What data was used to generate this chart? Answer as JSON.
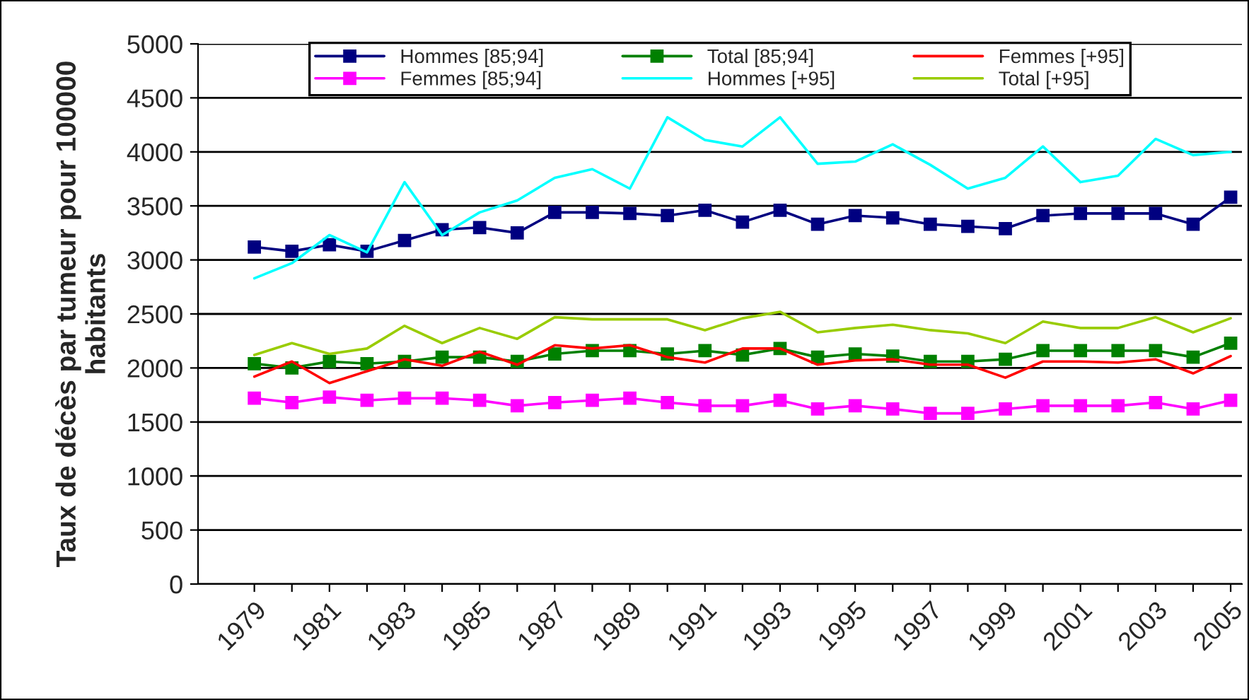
{
  "chart_data": {
    "type": "line",
    "ylabel": "Taux de décès par tumeur pour 100000\nhabitants",
    "categories": [
      "1979",
      null,
      "1981",
      null,
      "1983",
      null,
      "1985",
      null,
      "1987",
      null,
      "1989",
      null,
      "1991",
      null,
      "1993",
      null,
      "1995",
      null,
      "1997",
      null,
      "1999",
      null,
      "2001",
      null,
      "2003",
      null,
      "2005"
    ],
    "ylim": [
      0,
      5000
    ],
    "yticks": [
      0,
      500,
      1000,
      1500,
      2000,
      2500,
      3000,
      3500,
      4000,
      4500,
      5000
    ],
    "grid": "y",
    "legend": "top",
    "series": [
      {
        "name": "Hommes [85;94]",
        "color": "#000080",
        "marker": "square",
        "values": [
          3120,
          3080,
          3140,
          3080,
          3180,
          3280,
          3300,
          3250,
          3440,
          3440,
          3430,
          3410,
          3460,
          3350,
          3460,
          3330,
          3410,
          3390,
          3330,
          3310,
          3290,
          3410,
          3430,
          3430,
          3430,
          3330,
          3580
        ]
      },
      {
        "name": "Femmes [85;94]",
        "color": "#ff00ff",
        "marker": "square",
        "values": [
          1720,
          1680,
          1730,
          1700,
          1720,
          1720,
          1700,
          1650,
          1680,
          1700,
          1720,
          1680,
          1650,
          1650,
          1700,
          1620,
          1650,
          1620,
          1580,
          1580,
          1620,
          1650,
          1650,
          1650,
          1680,
          1620,
          1700
        ]
      },
      {
        "name": "Total [85;94]",
        "color": "#008000",
        "marker": "square",
        "values": [
          2040,
          2000,
          2060,
          2040,
          2060,
          2100,
          2100,
          2060,
          2130,
          2160,
          2160,
          2130,
          2160,
          2120,
          2180,
          2100,
          2130,
          2110,
          2060,
          2060,
          2080,
          2160,
          2160,
          2160,
          2160,
          2100,
          2230
        ]
      },
      {
        "name": "Hommes [+95]",
        "color": "#00ffff",
        "marker": "none",
        "values": [
          2830,
          2970,
          3230,
          3070,
          3720,
          3230,
          3440,
          3550,
          3760,
          3840,
          3660,
          4320,
          4110,
          4050,
          4320,
          3890,
          3910,
          4070,
          3880,
          3660,
          3760,
          4050,
          3720,
          3780,
          4120,
          3970,
          4000
        ]
      },
      {
        "name": "Femmes [+95]",
        "color": "#ff0000",
        "marker": "none",
        "values": [
          1920,
          2060,
          1860,
          1970,
          2080,
          2020,
          2150,
          2030,
          2210,
          2180,
          2210,
          2100,
          2050,
          2180,
          2180,
          2030,
          2070,
          2080,
          2030,
          2030,
          1910,
          2060,
          2060,
          2050,
          2080,
          1950,
          2110
        ]
      },
      {
        "name": "Total [+95]",
        "color": "#99cc00",
        "marker": "none",
        "values": [
          2120,
          2230,
          2130,
          2180,
          2390,
          2230,
          2370,
          2270,
          2470,
          2450,
          2450,
          2450,
          2350,
          2460,
          2520,
          2330,
          2370,
          2400,
          2350,
          2320,
          2230,
          2430,
          2370,
          2370,
          2470,
          2330,
          2460
        ]
      }
    ]
  }
}
